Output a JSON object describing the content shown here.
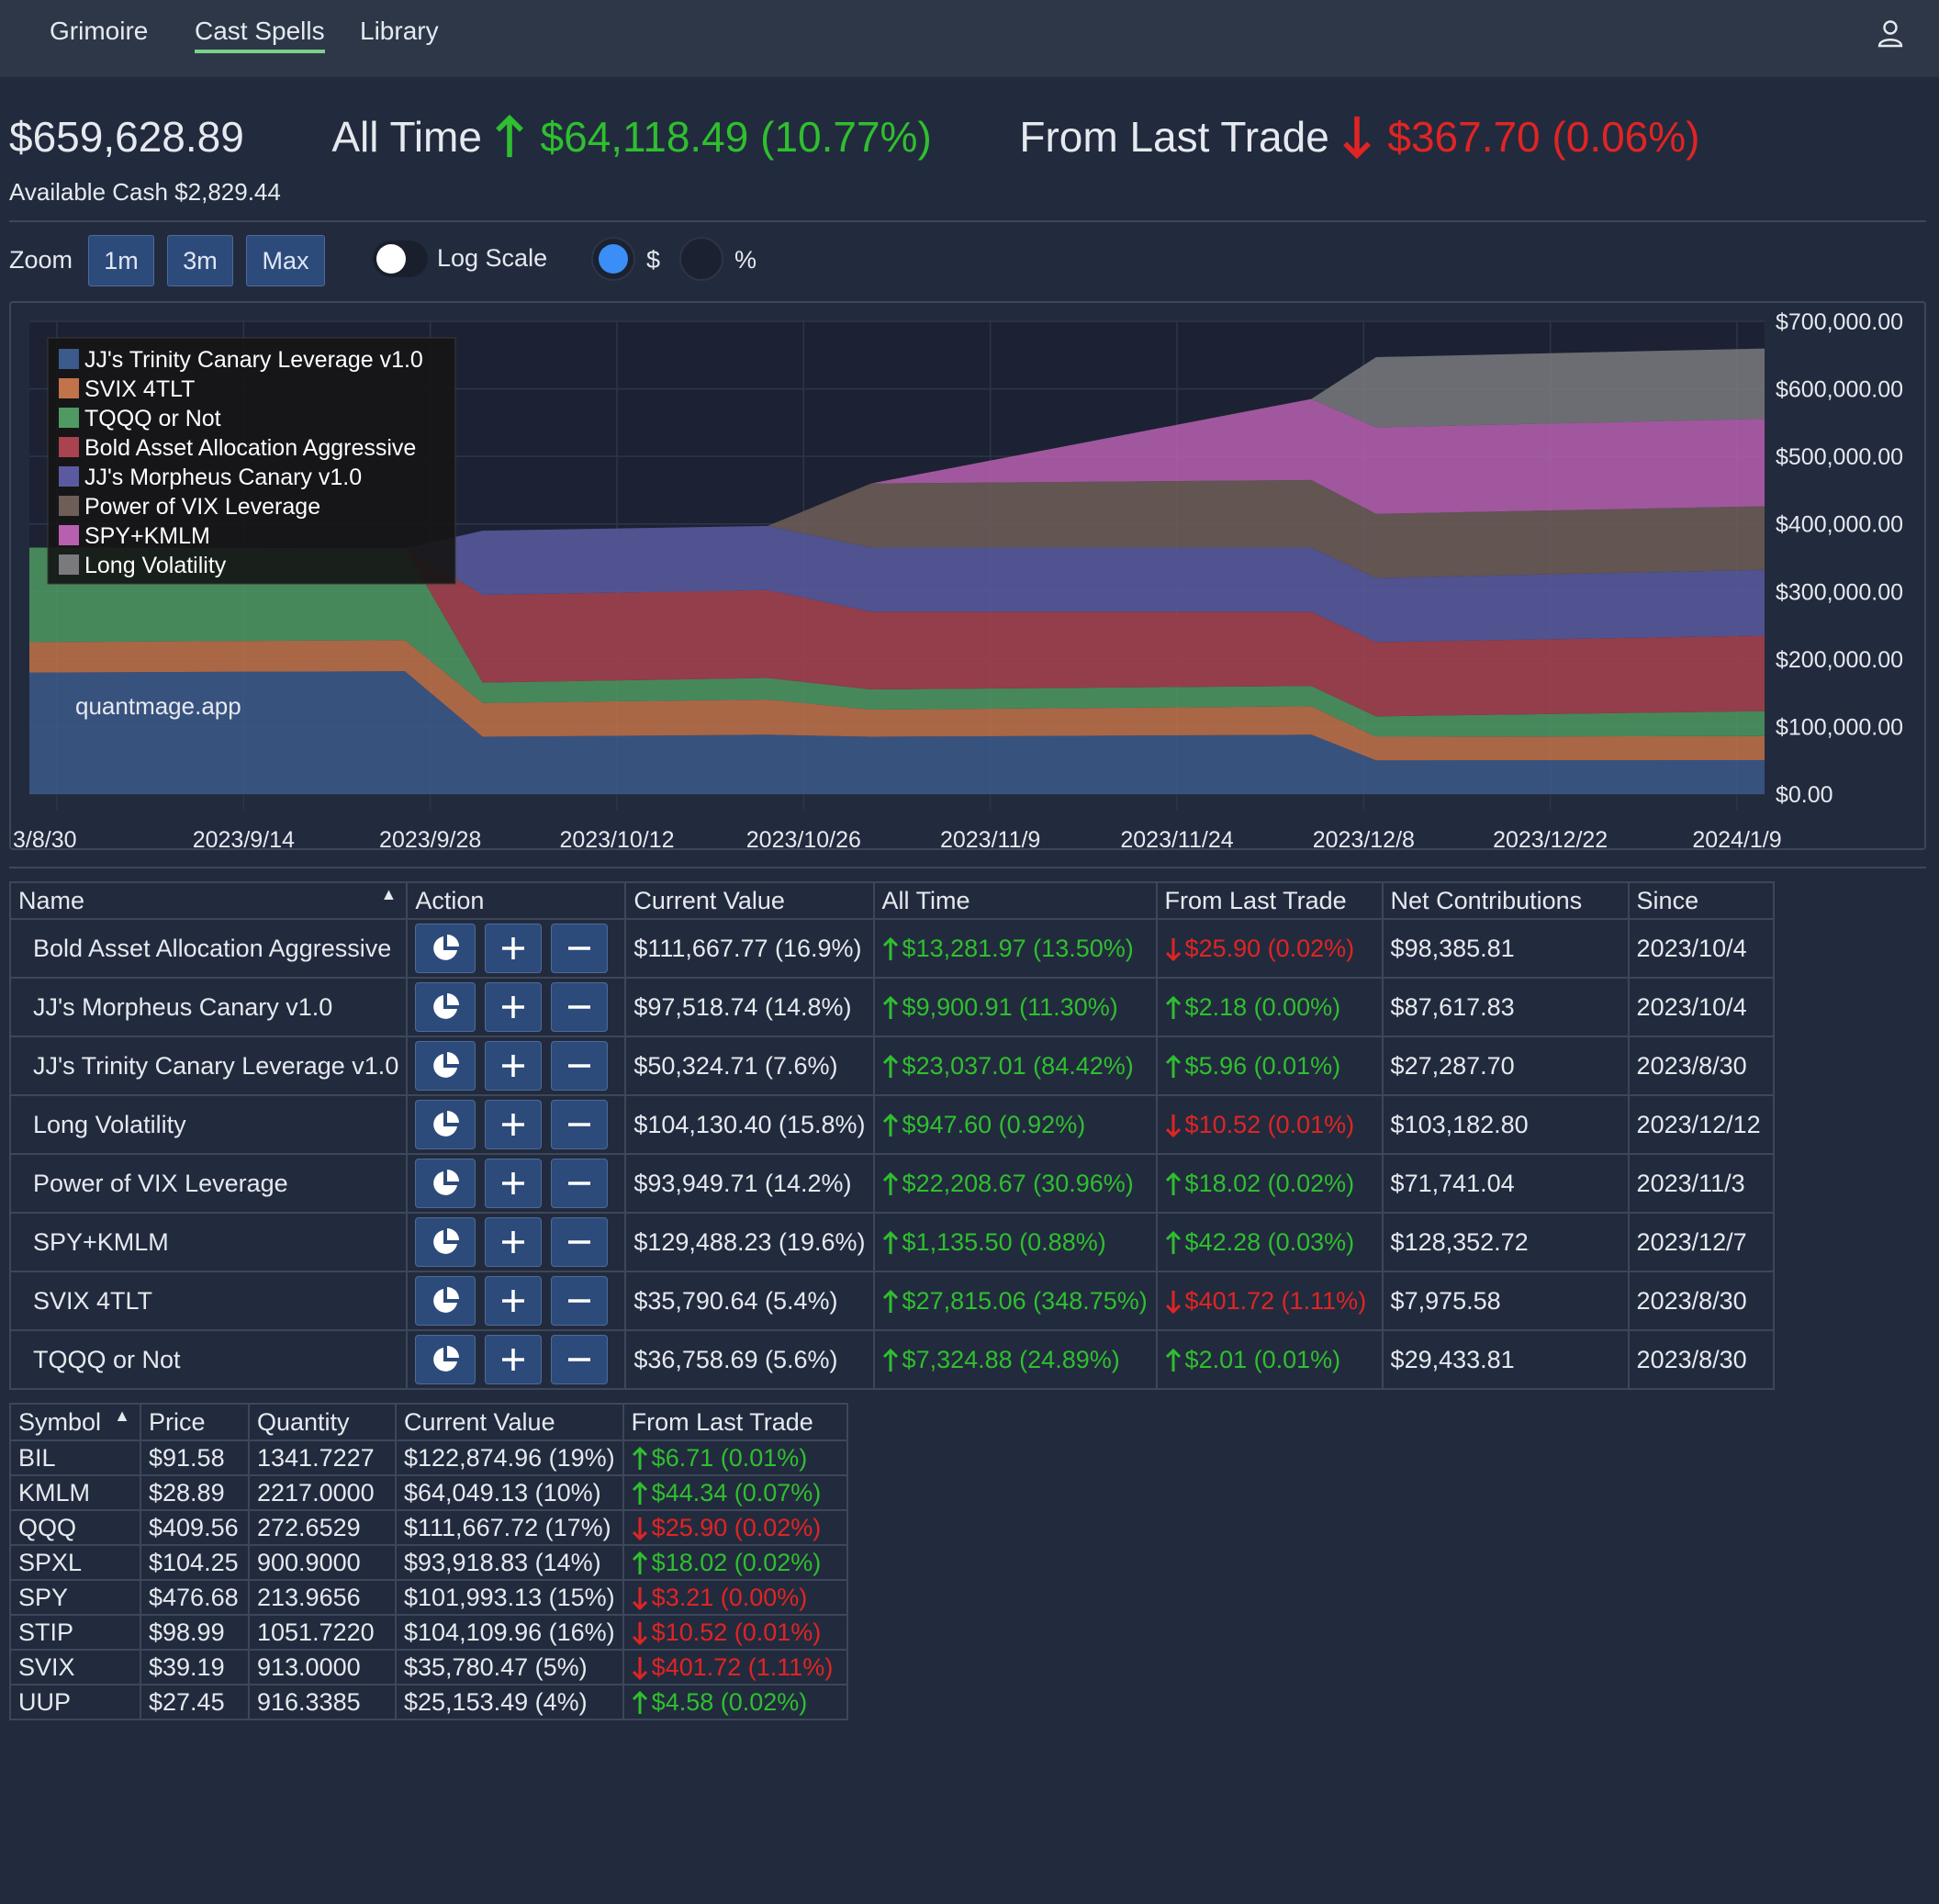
{
  "nav": {
    "items": [
      {
        "label": "Grimoire"
      },
      {
        "label": "Cast Spells"
      },
      {
        "label": "Library"
      }
    ],
    "active": "Cast Spells"
  },
  "summary": {
    "total": "$659,628.89",
    "all_time_label": "All Time",
    "all_time_change": "$64,118.49 (10.77%)",
    "last_trade_label": "From Last Trade",
    "last_trade_change": "$367.70 (0.06%)",
    "available_cash": "Available Cash $2,829.44"
  },
  "controls": {
    "zoom_label": "Zoom",
    "zoom_buttons": [
      "1m",
      "3m",
      "Max"
    ],
    "log_scale_label": "Log Scale",
    "dollar_label": "$",
    "percent_label": "%",
    "mode_selected": "$"
  },
  "chart_data": {
    "type": "area",
    "stacked": true,
    "watermark": "quantmage.app",
    "x_tick_labels": [
      "3/8/30",
      "2023/9/14",
      "2023/9/28",
      "2023/10/12",
      "2023/10/26",
      "2023/11/9",
      "2023/11/24",
      "2023/12/8",
      "2023/12/22",
      "2024/1/9"
    ],
    "y_tick_labels": [
      "$700,000.00",
      "$600,000.00",
      "$500,000.00",
      "$400,000.00",
      "$300,000.00",
      "$200,000.00",
      "$100,000.00",
      "$0.00"
    ],
    "ylim": [
      0,
      700000
    ],
    "legend_position": "top-left",
    "x": [
      "2023/8/30",
      "2023/9/28",
      "2023/10/4",
      "2023/10/26",
      "2023/11/3",
      "2023/12/7",
      "2023/12/12",
      "2024/1/11"
    ],
    "series": [
      {
        "name": "JJ's Trinity Canary Leverage v1.0",
        "color": "#3d5a8c",
        "values": [
          180000,
          182000,
          85000,
          88000,
          85000,
          88000,
          50000,
          50300
        ]
      },
      {
        "name": "SVIX 4TLT",
        "color": "#c2734a",
        "values": [
          45000,
          46000,
          50000,
          52000,
          40000,
          42000,
          35000,
          35800
        ]
      },
      {
        "name": "TQQQ or Not",
        "color": "#4f9a63",
        "values": [
          140000,
          136000,
          30000,
          32000,
          30000,
          30000,
          30000,
          36800
        ]
      },
      {
        "name": "Bold Asset Allocation Aggressive",
        "color": "#a8434f",
        "values": [
          0,
          0,
          130000,
          130000,
          115000,
          110000,
          110000,
          111700
        ]
      },
      {
        "name": "JJ's Morpheus Canary v1.0",
        "color": "#5b5aa1",
        "values": [
          0,
          0,
          95000,
          95000,
          95000,
          95000,
          95000,
          97500
        ]
      },
      {
        "name": "Power of VIX Leverage",
        "color": "#6e5e58",
        "values": [
          0,
          0,
          0,
          0,
          95000,
          100000,
          95000,
          94000
        ]
      },
      {
        "name": "SPY+KMLM",
        "color": "#b760b0",
        "values": [
          0,
          0,
          0,
          0,
          0,
          120000,
          128000,
          129500
        ]
      },
      {
        "name": "Long Volatility",
        "color": "#7a7a7e",
        "values": [
          0,
          0,
          0,
          0,
          0,
          0,
          104000,
          104100
        ]
      }
    ]
  },
  "strategies": {
    "headers": [
      "Name",
      "Action",
      "Current Value",
      "All Time",
      "From Last Trade",
      "Net Contributions",
      "Since"
    ],
    "rows": [
      {
        "name": "Bold Asset Allocation Aggressive",
        "value": "$111,667.77 (16.9%)",
        "all_time": "$13,281.97 (13.50%)",
        "all_time_dir": "up",
        "last": "$25.90 (0.02%)",
        "last_dir": "down",
        "net": "$98,385.81",
        "since": "2023/10/4"
      },
      {
        "name": "JJ's Morpheus Canary v1.0",
        "value": "$97,518.74 (14.8%)",
        "all_time": "$9,900.91 (11.30%)",
        "all_time_dir": "up",
        "last": "$2.18 (0.00%)",
        "last_dir": "up",
        "net": "$87,617.83",
        "since": "2023/10/4"
      },
      {
        "name": "JJ's Trinity Canary Leverage v1.0",
        "value": "$50,324.71 (7.6%)",
        "all_time": "$23,037.01 (84.42%)",
        "all_time_dir": "up",
        "last": "$5.96 (0.01%)",
        "last_dir": "up",
        "net": "$27,287.70",
        "since": "2023/8/30"
      },
      {
        "name": "Long Volatility",
        "value": "$104,130.40 (15.8%)",
        "all_time": "$947.60 (0.92%)",
        "all_time_dir": "up",
        "last": "$10.52 (0.01%)",
        "last_dir": "down",
        "net": "$103,182.80",
        "since": "2023/12/12"
      },
      {
        "name": "Power of VIX Leverage",
        "value": "$93,949.71 (14.2%)",
        "all_time": "$22,208.67 (30.96%)",
        "all_time_dir": "up",
        "last": "$18.02 (0.02%)",
        "last_dir": "up",
        "net": "$71,741.04",
        "since": "2023/11/3"
      },
      {
        "name": "SPY+KMLM",
        "value": "$129,488.23 (19.6%)",
        "all_time": "$1,135.50 (0.88%)",
        "all_time_dir": "up",
        "last": "$42.28 (0.03%)",
        "last_dir": "up",
        "net": "$128,352.72",
        "since": "2023/12/7"
      },
      {
        "name": "SVIX 4TLT",
        "value": "$35,790.64 (5.4%)",
        "all_time": "$27,815.06 (348.75%)",
        "all_time_dir": "up",
        "last": "$401.72 (1.11%)",
        "last_dir": "down",
        "net": "$7,975.58",
        "since": "2023/8/30"
      },
      {
        "name": "TQQQ or Not",
        "value": "$36,758.69 (5.6%)",
        "all_time": "$7,324.88 (24.89%)",
        "all_time_dir": "up",
        "last": "$2.01 (0.01%)",
        "last_dir": "up",
        "net": "$29,433.81",
        "since": "2023/8/30"
      }
    ]
  },
  "holdings": {
    "headers": [
      "Symbol",
      "Price",
      "Quantity",
      "Current Value",
      "From Last Trade"
    ],
    "rows": [
      {
        "symbol": "BIL",
        "price": "$91.58",
        "qty": "1341.7227",
        "value": "$122,874.96 (19%)",
        "last": "$6.71 (0.01%)",
        "dir": "up"
      },
      {
        "symbol": "KMLM",
        "price": "$28.89",
        "qty": "2217.0000",
        "value": "$64,049.13 (10%)",
        "last": "$44.34 (0.07%)",
        "dir": "up"
      },
      {
        "symbol": "QQQ",
        "price": "$409.56",
        "qty": "272.6529",
        "value": "$111,667.72 (17%)",
        "last": "$25.90 (0.02%)",
        "dir": "down"
      },
      {
        "symbol": "SPXL",
        "price": "$104.25",
        "qty": "900.9000",
        "value": "$93,918.83 (14%)",
        "last": "$18.02 (0.02%)",
        "dir": "up"
      },
      {
        "symbol": "SPY",
        "price": "$476.68",
        "qty": "213.9656",
        "value": "$101,993.13 (15%)",
        "last": "$3.21 (0.00%)",
        "dir": "down"
      },
      {
        "symbol": "STIP",
        "price": "$98.99",
        "qty": "1051.7220",
        "value": "$104,109.96 (16%)",
        "last": "$10.52 (0.01%)",
        "dir": "down"
      },
      {
        "symbol": "SVIX",
        "price": "$39.19",
        "qty": "913.0000",
        "value": "$35,780.47 (5%)",
        "last": "$401.72 (1.11%)",
        "dir": "down"
      },
      {
        "symbol": "UUP",
        "price": "$27.45",
        "qty": "916.3385",
        "value": "$25,153.49 (4%)",
        "last": "$4.58 (0.02%)",
        "dir": "up"
      }
    ]
  },
  "colors": {
    "up": "#2fbf2f",
    "down": "#e02424",
    "accent": "#3b8ef5",
    "bg": "#222b3d"
  }
}
